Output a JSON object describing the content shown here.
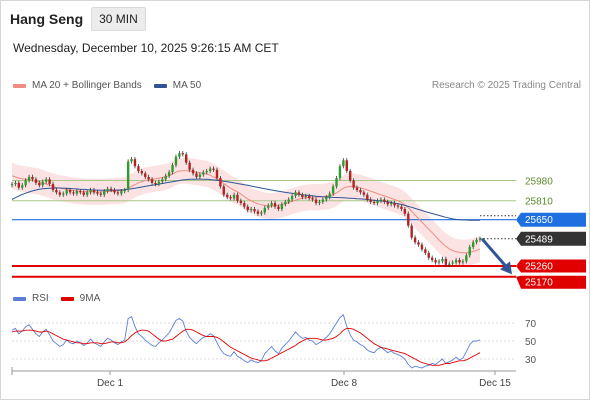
{
  "header": {
    "symbol": "Hang Seng",
    "timeframe": "30 MIN",
    "datetime": "Wednesday, December 10, 2025 9:26:15 AM CET",
    "credit": "Research © 2025 Trading Central"
  },
  "legend_main": [
    {
      "label": "MA 20 + Bollinger Bands",
      "color": "#f28b82"
    },
    {
      "label": "MA 50",
      "color": "#2f5597"
    }
  ],
  "legend_rsi": [
    {
      "label": "RSI",
      "color": "#5b7fd6"
    },
    {
      "label": "9MA",
      "color": "#e00000"
    }
  ],
  "chart_data": {
    "type": "candlestick",
    "price_axis": {
      "min": 25100,
      "max": 26700
    },
    "x_ticks": [
      "Dec 1",
      "Dec 8",
      "Dec 15"
    ],
    "levels": [
      {
        "value": 25980,
        "label": "25980",
        "style": "resistance",
        "color": "#a8c686",
        "text_color": "#5c8a2c"
      },
      {
        "value": 25810,
        "label": "25810",
        "style": "resistance",
        "color": "#a8c686",
        "text_color": "#5c8a2c"
      },
      {
        "value": 25650,
        "label": "25650",
        "style": "pivot",
        "color": "#1e6fe0",
        "text_color": "#ffffff"
      },
      {
        "value": 25489,
        "label": "25489",
        "style": "last",
        "color": "#333333",
        "text_color": "#ffffff"
      },
      {
        "value": 25260,
        "label": "25260",
        "style": "support",
        "color": "#e00000",
        "text_color": "#ffffff"
      },
      {
        "value": 25170,
        "label": "25170",
        "style": "support",
        "color": "#e00000",
        "text_color": "#ffffff"
      }
    ],
    "candles_close": [
      25950,
      25960,
      25920,
      25940,
      25980,
      26010,
      25990,
      25960,
      25940,
      25970,
      25990,
      25950,
      25900,
      25880,
      25860,
      25870,
      25900,
      25880,
      25870,
      25890,
      25880,
      25860,
      25880,
      25900,
      25880,
      25870,
      25860,
      25890,
      25910,
      25900,
      25880,
      25870,
      25890,
      25900,
      26140,
      26160,
      26100,
      26060,
      26040,
      26010,
      25990,
      25960,
      25950,
      25970,
      25990,
      26020,
      26050,
      26110,
      26180,
      26210,
      26200,
      26130,
      26070,
      26040,
      26010,
      26030,
      26050,
      26060,
      26080,
      26070,
      26000,
      25930,
      25860,
      25840,
      25830,
      25860,
      25810,
      25790,
      25760,
      25730,
      25740,
      25720,
      25700,
      25710,
      25750,
      25770,
      25790,
      25760,
      25740,
      25780,
      25800,
      25820,
      25850,
      25880,
      25860,
      25840,
      25850,
      25830,
      25820,
      25790,
      25800,
      25820,
      25840,
      25870,
      25930,
      26000,
      26100,
      26150,
      26060,
      25980,
      25920,
      25900,
      25880,
      25860,
      25820,
      25800,
      25790,
      25810,
      25820,
      25800,
      25780,
      25790,
      25770,
      25760,
      25740,
      25700,
      25600,
      25500,
      25460,
      25440,
      25400,
      25370,
      25330,
      25310,
      25290,
      25300,
      25320,
      25270,
      25280,
      25290,
      25310,
      25290,
      25300,
      25350,
      25420,
      25460,
      25480,
      25489
    ],
    "ma20": [
      26020,
      26010,
      26000,
      25995,
      25990,
      25985,
      25980,
      25975,
      25970,
      25960,
      25950,
      25940,
      25930,
      25920,
      25915,
      25910,
      25905,
      25900,
      25895,
      25892,
      25890,
      25888,
      25886,
      25885,
      25884,
      25883,
      25884,
      25886,
      25888,
      25890,
      25892,
      25893,
      25895,
      25898,
      25915,
      25930,
      25945,
      25960,
      25970,
      25980,
      25985,
      25990,
      25995,
      26000,
      26005,
      26010,
      26020,
      26035,
      26050,
      26060,
      26062,
      26062,
      26060,
      26055,
      26050,
      26045,
      26040,
      26035,
      26025,
      26010,
      25995,
      25975,
      25955,
      25935,
      25915,
      25900,
      25885,
      25865,
      25845,
      25825,
      25810,
      25795,
      25785,
      25775,
      25770,
      25765,
      25765,
      25768,
      25772,
      25778,
      25785,
      25795,
      25805,
      25815,
      25823,
      25830,
      25835,
      25838,
      25840,
      25840,
      25841,
      25843,
      25846,
      25850,
      25860,
      25875,
      25895,
      25915,
      25925,
      25930,
      25930,
      25925,
      25918,
      25910,
      25900,
      25890,
      25880,
      25870,
      25860,
      25850,
      25840,
      25830,
      25820,
      25810,
      25795,
      25775,
      25750,
      25720,
      25690,
      25660,
      25630,
      25600,
      25570,
      25540,
      25510,
      25480,
      25450,
      25425,
      25405,
      25390,
      25380,
      25375,
      25372,
      25372,
      25376,
      25383,
      25392,
      25400
    ],
    "ma50": [
      25820,
      25835,
      25850,
      25862,
      25873,
      25883,
      25892,
      25900,
      25906,
      25910,
      25913,
      25915,
      25916,
      25917,
      25917,
      25916,
      25915,
      25913,
      25911,
      25909,
      25907,
      25905,
      25903,
      25901,
      25900,
      25899,
      25898,
      25898,
      25898,
      25898,
      25899,
      25900,
      25901,
      25902,
      25905,
      25910,
      25915,
      25920,
      25925,
      25930,
      25935,
      25940,
      25945,
      25950,
      25955,
      25960,
      25965,
      25970,
      25975,
      25980,
      25985,
      25988,
      25990,
      25991,
      25992,
      25992,
      25991,
      25990,
      25988,
      25985,
      25982,
      25978,
      25974,
      25970,
      25965,
      25960,
      25955,
      25950,
      25945,
      25940,
      25934,
      25928,
      25922,
      25916,
      25910,
      25905,
      25900,
      25895,
      25890,
      25885,
      25880,
      25876,
      25872,
      25868,
      25864,
      25860,
      25857,
      25854,
      25851,
      25848,
      25845,
      25843,
      25841,
      25839,
      25838,
      25837,
      25836,
      25835,
      25833,
      25831,
      25829,
      25827,
      25825,
      25823,
      25820,
      25817,
      25814,
      25811,
      25808,
      25805,
      25800,
      25795,
      25790,
      25784,
      25778,
      25770,
      25762,
      25754,
      25745,
      25736,
      25727,
      25718,
      25710,
      25702,
      25694,
      25686,
      25678,
      25670,
      25663,
      25657,
      25652,
      25650,
      25648,
      25647,
      25646,
      25645,
      25645,
      25645
    ],
    "rsi_axis": {
      "min": 20,
      "max": 80,
      "ticks": [
        70,
        50,
        30
      ]
    },
    "rsi": [
      62,
      64,
      58,
      61,
      66,
      68,
      63,
      58,
      55,
      60,
      63,
      57,
      50,
      47,
      44,
      46,
      51,
      48,
      47,
      50,
      48,
      45,
      48,
      52,
      48,
      46,
      44,
      49,
      53,
      51,
      48,
      46,
      49,
      51,
      75,
      77,
      66,
      58,
      55,
      51,
      48,
      45,
      44,
      48,
      51,
      55,
      59,
      66,
      73,
      75,
      72,
      61,
      54,
      50,
      47,
      51,
      54,
      55,
      58,
      56,
      48,
      41,
      36,
      34,
      33,
      38,
      33,
      31,
      28,
      26,
      29,
      27,
      26,
      28,
      36,
      40,
      44,
      39,
      36,
      42,
      46,
      50,
      55,
      60,
      56,
      53,
      54,
      51,
      50,
      46,
      48,
      51,
      54,
      58,
      64,
      70,
      76,
      79,
      66,
      57,
      51,
      49,
      46,
      44,
      40,
      38,
      37,
      41,
      43,
      40,
      37,
      39,
      36,
      35,
      33,
      30,
      24,
      20,
      22,
      21,
      20,
      22,
      23,
      25,
      24,
      27,
      30,
      25,
      27,
      29,
      32,
      29,
      31,
      38,
      46,
      50,
      50,
      51
    ],
    "rsi_ma9": [
      60,
      61,
      61,
      61,
      62,
      62,
      62,
      61,
      60,
      60,
      61,
      60,
      58,
      56,
      54,
      52,
      51,
      50,
      49,
      48,
      48,
      47,
      47,
      48,
      48,
      48,
      47,
      47,
      48,
      49,
      49,
      48,
      48,
      49,
      52,
      56,
      59,
      61,
      62,
      62,
      61,
      58,
      55,
      52,
      50,
      50,
      51,
      52,
      55,
      58,
      61,
      63,
      63,
      62,
      60,
      58,
      56,
      55,
      55,
      55,
      54,
      52,
      49,
      46,
      43,
      41,
      39,
      37,
      35,
      33,
      31,
      30,
      29,
      28,
      28,
      29,
      31,
      33,
      35,
      37,
      39,
      41,
      43,
      45,
      48,
      50,
      52,
      53,
      53,
      53,
      52,
      51,
      51,
      52,
      53,
      55,
      58,
      62,
      64,
      64,
      63,
      61,
      59,
      56,
      53,
      50,
      47,
      45,
      43,
      42,
      41,
      40,
      39,
      38,
      37,
      36,
      34,
      32,
      30,
      28,
      26,
      25,
      24,
      23,
      23,
      23,
      24,
      25,
      25,
      26,
      27,
      28,
      28,
      29,
      31,
      33,
      35,
      37
    ]
  }
}
